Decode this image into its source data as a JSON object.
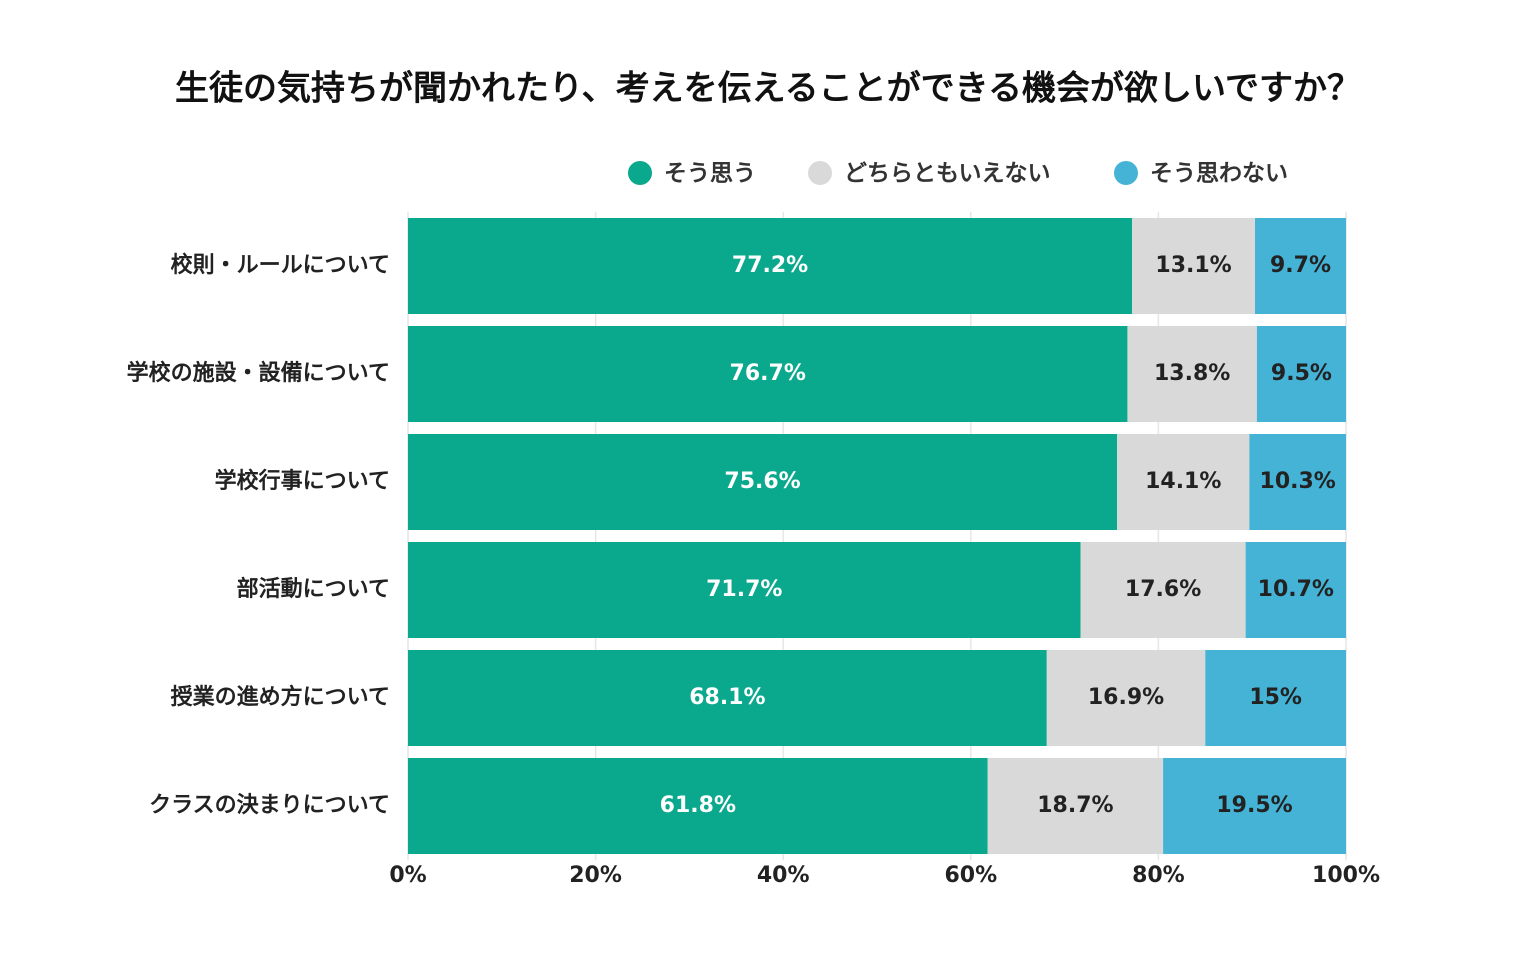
{
  "chart_data": {
    "type": "stacked-bar-horizontal",
    "title": "生徒の気持ちが聞かれたり、考えを伝えることができる機会が欲しいですか？",
    "categories": [
      "校則・ルールについて",
      "学校の施設・設備について",
      "学校行事について",
      "部活動について",
      "授業の進め方について",
      "クラスの決まりについて"
    ],
    "series": [
      {
        "name": "そう思う",
        "color": "#0aa88c",
        "values": [
          77.2,
          76.7,
          75.6,
          71.7,
          68.1,
          61.8
        ],
        "value_labels": [
          "77.2%",
          "76.7%",
          "75.6%",
          "71.7%",
          "68.1%",
          "61.8%"
        ]
      },
      {
        "name": "どちらともいえない",
        "color": "#d9d9d9",
        "values": [
          13.1,
          13.8,
          14.1,
          17.6,
          16.9,
          18.7
        ],
        "value_labels": [
          "13.1%",
          "13.8%",
          "14.1%",
          "17.6%",
          "16.9%",
          "18.7%"
        ]
      },
      {
        "name": "そう思わない",
        "color": "#45b3d6",
        "values": [
          9.7,
          9.5,
          10.3,
          10.7,
          15,
          19.5
        ],
        "value_labels": [
          "9.7%",
          "9.5%",
          "10.3%",
          "10.7%",
          "15%",
          "19.5%"
        ]
      }
    ],
    "xlim": [
      0,
      100
    ],
    "xticks": [
      {
        "value": 0,
        "label": "0%"
      },
      {
        "value": 20,
        "label": "20%"
      },
      {
        "value": 40,
        "label": "40%"
      },
      {
        "value": 60,
        "label": "60%"
      },
      {
        "value": 80,
        "label": "80%"
      },
      {
        "value": 100,
        "label": "100%"
      }
    ],
    "grid": true
  }
}
